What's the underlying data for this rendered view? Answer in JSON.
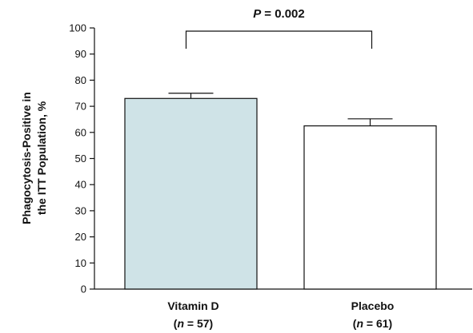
{
  "chart_data": {
    "type": "bar",
    "categories": [
      "Vitamin D",
      "Placebo"
    ],
    "category_n": [
      "(n = 57)",
      "(n = 61)"
    ],
    "n_letter": "n",
    "n_values": [
      "= 57)",
      "= 61)"
    ],
    "values": [
      73,
      62.5
    ],
    "error_upper": [
      75,
      65.2
    ],
    "bar_colors": [
      "#cfe3e7",
      "#ffffff"
    ],
    "bar_stroke": "#111111",
    "ylabel": "Phagocytosis-Positive in the ITT Population, %",
    "ylabel_lines": [
      "Phagocytosis-Positive in",
      "the ITT Population, %"
    ],
    "ylim": [
      0,
      100
    ],
    "yticks": [
      0,
      10,
      20,
      30,
      40,
      50,
      60,
      70,
      80,
      90,
      100
    ],
    "grid": false,
    "significance": {
      "letter": "P",
      "value_text": "= 0.002"
    }
  }
}
